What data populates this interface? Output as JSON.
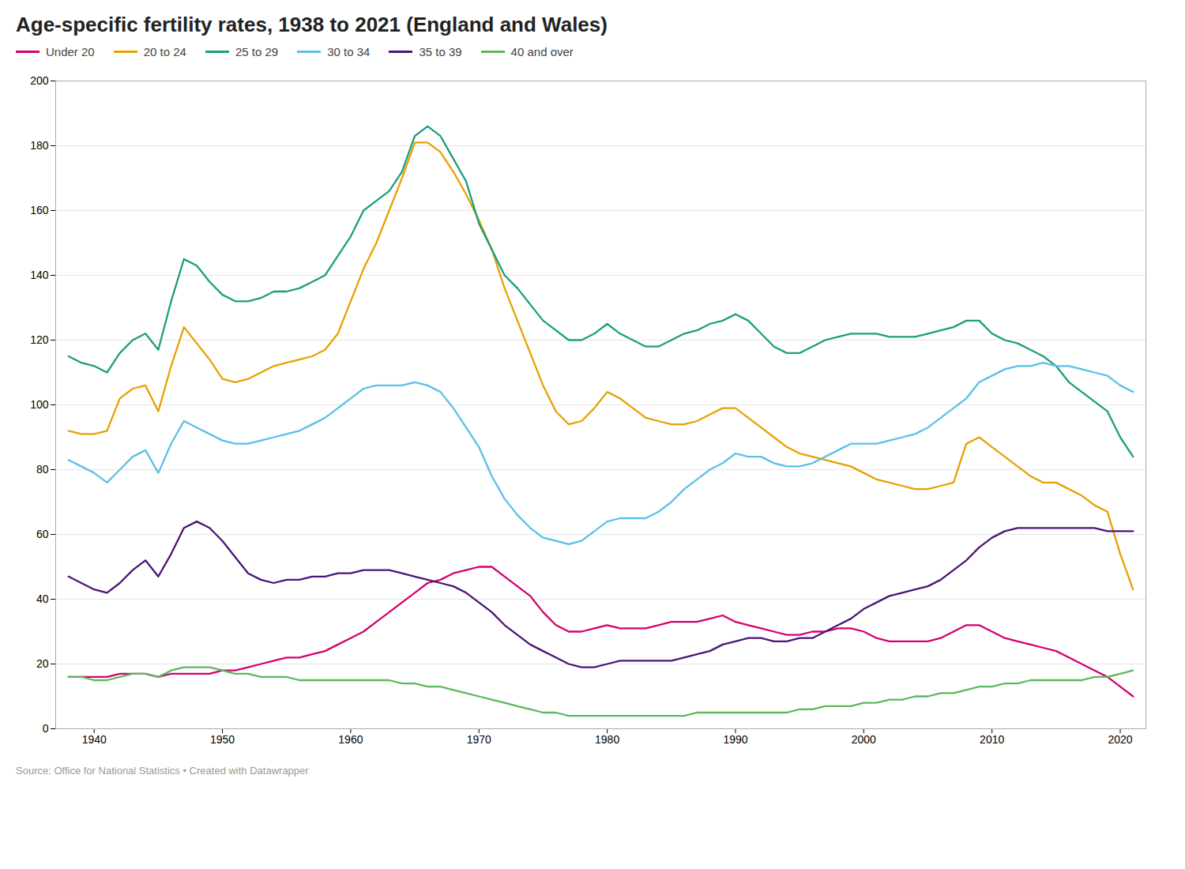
{
  "chart_data": {
    "type": "line",
    "title": "Age-specific fertility rates, 1938 to 2021 (England and Wales)",
    "caption": "Source: Office for National Statistics • Created with Datawrapper",
    "legend": "top-left",
    "grid": true,
    "xlim": [
      1937,
      2022
    ],
    "xticks": [
      1940,
      1950,
      1960,
      1970,
      1980,
      1990,
      2000,
      2010,
      2020
    ],
    "ylim": [
      0,
      200
    ],
    "yticks": [
      0,
      20,
      40,
      60,
      80,
      100,
      120,
      140,
      160,
      180,
      200
    ],
    "x": [
      1938,
      1939,
      1940,
      1941,
      1942,
      1943,
      1944,
      1945,
      1946,
      1947,
      1948,
      1949,
      1950,
      1951,
      1952,
      1953,
      1954,
      1955,
      1956,
      1957,
      1958,
      1959,
      1960,
      1961,
      1962,
      1963,
      1964,
      1965,
      1966,
      1967,
      1968,
      1969,
      1970,
      1971,
      1972,
      1973,
      1974,
      1975,
      1976,
      1977,
      1978,
      1979,
      1980,
      1981,
      1982,
      1983,
      1984,
      1985,
      1986,
      1987,
      1988,
      1989,
      1990,
      1991,
      1992,
      1993,
      1994,
      1995,
      1996,
      1997,
      1998,
      1999,
      2000,
      2001,
      2002,
      2003,
      2004,
      2005,
      2006,
      2007,
      2008,
      2009,
      2010,
      2011,
      2012,
      2013,
      2014,
      2015,
      2016,
      2017,
      2018,
      2019,
      2020,
      2021
    ],
    "series": [
      {
        "name": "Under 20",
        "color": "#d4006e",
        "values": [
          16,
          16,
          16,
          16,
          17,
          17,
          17,
          16,
          17,
          17,
          17,
          17,
          18,
          18,
          19,
          20,
          21,
          22,
          22,
          23,
          24,
          26,
          28,
          30,
          33,
          36,
          39,
          42,
          45,
          46,
          48,
          49,
          50,
          50,
          47,
          44,
          41,
          36,
          32,
          30,
          30,
          31,
          32,
          31,
          31,
          31,
          32,
          33,
          33,
          33,
          34,
          35,
          33,
          32,
          31,
          30,
          29,
          29,
          30,
          30,
          31,
          31,
          30,
          28,
          27,
          27,
          27,
          27,
          28,
          30,
          32,
          32,
          30,
          28,
          27,
          26,
          25,
          24,
          22,
          20,
          18,
          16,
          13,
          10
        ]
      },
      {
        "name": "20 to 24",
        "color": "#e8a000",
        "values": [
          92,
          91,
          91,
          92,
          102,
          105,
          106,
          98,
          112,
          124,
          119,
          114,
          108,
          107,
          108,
          110,
          112,
          113,
          114,
          115,
          117,
          122,
          132,
          142,
          150,
          160,
          170,
          181,
          181,
          178,
          172,
          165,
          157,
          148,
          136,
          126,
          116,
          106,
          98,
          94,
          95,
          99,
          104,
          102,
          99,
          96,
          95,
          94,
          94,
          95,
          97,
          99,
          99,
          96,
          93,
          90,
          87,
          85,
          84,
          83,
          82,
          81,
          79,
          77,
          76,
          75,
          74,
          74,
          75,
          76,
          88,
          90,
          87,
          84,
          81,
          78,
          76,
          76,
          74,
          72,
          69,
          67,
          54,
          43
        ]
      },
      {
        "name": "25 to 29",
        "color": "#1a9e7e",
        "values": [
          115,
          113,
          112,
          110,
          116,
          120,
          122,
          117,
          132,
          145,
          143,
          138,
          134,
          132,
          132,
          133,
          135,
          135,
          136,
          138,
          140,
          146,
          152,
          160,
          163,
          166,
          172,
          183,
          186,
          183,
          176,
          169,
          156,
          148,
          140,
          136,
          131,
          126,
          123,
          120,
          120,
          122,
          125,
          122,
          120,
          118,
          118,
          120,
          122,
          123,
          125,
          126,
          128,
          126,
          122,
          118,
          116,
          116,
          118,
          120,
          121,
          122,
          122,
          122,
          121,
          121,
          121,
          122,
          123,
          124,
          126,
          126,
          122,
          120,
          119,
          117,
          115,
          112,
          107,
          104,
          101,
          98,
          90,
          84
        ]
      },
      {
        "name": "30 to 34",
        "color": "#5bbfe8",
        "values": [
          83,
          81,
          79,
          76,
          80,
          84,
          86,
          79,
          88,
          95,
          93,
          91,
          89,
          88,
          88,
          89,
          90,
          91,
          92,
          94,
          96,
          99,
          102,
          105,
          106,
          106,
          106,
          107,
          106,
          104,
          99,
          93,
          87,
          78,
          71,
          66,
          62,
          59,
          58,
          57,
          58,
          61,
          64,
          65,
          65,
          65,
          67,
          70,
          74,
          77,
          80,
          82,
          85,
          84,
          84,
          82,
          81,
          81,
          82,
          84,
          86,
          88,
          88,
          88,
          89,
          90,
          91,
          93,
          96,
          99,
          102,
          107,
          109,
          111,
          112,
          112,
          113,
          112,
          112,
          111,
          110,
          109,
          106,
          104
        ]
      },
      {
        "name": "35 to 39",
        "color": "#4a1575",
        "values": [
          47,
          45,
          43,
          42,
          45,
          49,
          52,
          47,
          54,
          62,
          64,
          62,
          58,
          53,
          48,
          46,
          45,
          46,
          46,
          47,
          47,
          48,
          48,
          49,
          49,
          49,
          48,
          47,
          46,
          45,
          44,
          42,
          39,
          36,
          32,
          29,
          26,
          24,
          22,
          20,
          19,
          19,
          20,
          21,
          21,
          21,
          21,
          21,
          22,
          23,
          24,
          26,
          27,
          28,
          28,
          27,
          27,
          28,
          28,
          30,
          32,
          34,
          37,
          39,
          41,
          42,
          43,
          44,
          46,
          49,
          52,
          56,
          59,
          61,
          62,
          62,
          62,
          62,
          62,
          62,
          62,
          61,
          61,
          61
        ]
      },
      {
        "name": "40 and over",
        "color": "#5cb85c",
        "values": [
          16,
          16,
          15,
          15,
          16,
          17,
          17,
          16,
          18,
          19,
          19,
          19,
          18,
          17,
          17,
          16,
          16,
          16,
          15,
          15,
          15,
          15,
          15,
          15,
          15,
          15,
          14,
          14,
          13,
          13,
          12,
          11,
          10,
          9,
          8,
          7,
          6,
          5,
          5,
          4,
          4,
          4,
          4,
          4,
          4,
          4,
          4,
          4,
          4,
          5,
          5,
          5,
          5,
          5,
          5,
          5,
          5,
          6,
          6,
          7,
          7,
          7,
          8,
          8,
          9,
          9,
          10,
          10,
          11,
          11,
          12,
          13,
          13,
          14,
          14,
          15,
          15,
          15,
          15,
          15,
          16,
          16,
          17,
          18
        ]
      }
    ]
  }
}
